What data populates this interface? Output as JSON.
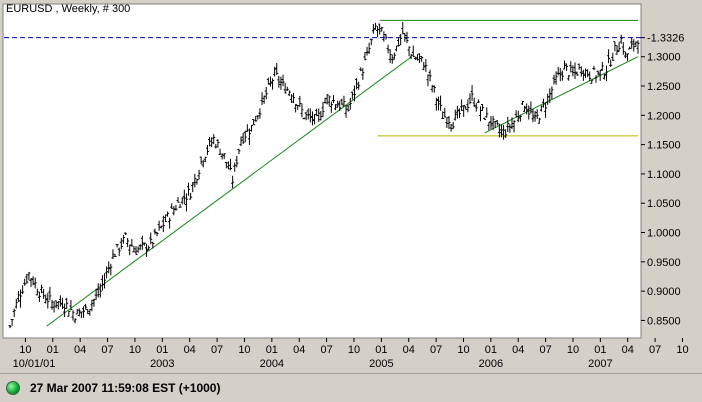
{
  "chart_data": {
    "type": "ohlc",
    "title": "EURUSD , Weekly, # 300",
    "timeframe": "Weekly",
    "bars_count": 300,
    "ylim": [
      0.82,
      1.39
    ],
    "y_ticks": [
      "0.8500",
      "0.9000",
      "0.9500",
      "1.0000",
      "1.0500",
      "1.1000",
      "1.1500",
      "1.2000",
      "1.2500",
      "1.3000",
      "1.3326"
    ],
    "x_tick_labels": [
      "10",
      "01",
      "04",
      "07",
      "10",
      "01",
      "04",
      "07",
      "10",
      "01",
      "04",
      "07",
      "10",
      "01",
      "04",
      "07",
      "10",
      "01",
      "04",
      "07",
      "10",
      "01",
      "04",
      "07",
      "10",
      "01"
    ],
    "x_year_labels": [
      "10/01/01",
      "2003",
      "2004",
      "2005",
      "2006",
      "2007"
    ],
    "last_price": "1.3326",
    "trend_levels": [
      {
        "name": "long-term support",
        "start": [
          "2002-01",
          0.84
        ],
        "end": [
          "2005-05",
          1.3
        ]
      },
      {
        "name": "upper resistance",
        "value": 1.362
      },
      {
        "name": "lower support",
        "value": 1.165
      },
      {
        "name": "short-term support",
        "start": [
          "2006-01",
          1.17
        ],
        "end": [
          "2007-03",
          1.3
        ]
      }
    ],
    "price_path": [
      [
        0,
        0.84
      ],
      [
        4,
        0.89
      ],
      [
        9,
        0.93
      ],
      [
        14,
        0.9
      ],
      [
        20,
        0.88
      ],
      [
        26,
        0.88
      ],
      [
        31,
        0.86
      ],
      [
        37,
        0.87
      ],
      [
        43,
        0.9
      ],
      [
        49,
        0.96
      ],
      [
        55,
        0.99
      ],
      [
        60,
        0.97
      ],
      [
        67,
        0.98
      ],
      [
        74,
        1.02
      ],
      [
        80,
        1.05
      ],
      [
        86,
        1.07
      ],
      [
        92,
        1.13
      ],
      [
        97,
        1.16
      ],
      [
        102,
        1.13
      ],
      [
        106,
        1.09
      ],
      [
        110,
        1.16
      ],
      [
        115,
        1.18
      ],
      [
        120,
        1.22
      ],
      [
        126,
        1.27
      ],
      [
        130,
        1.25
      ],
      [
        134,
        1.24
      ],
      [
        140,
        1.2
      ],
      [
        146,
        1.19
      ],
      [
        151,
        1.23
      ],
      [
        156,
        1.22
      ],
      [
        161,
        1.21
      ],
      [
        165,
        1.25
      ],
      [
        170,
        1.3
      ],
      [
        174,
        1.35
      ],
      [
        177,
        1.34
      ],
      [
        182,
        1.3
      ],
      [
        187,
        1.34
      ],
      [
        192,
        1.3
      ],
      [
        197,
        1.29
      ],
      [
        202,
        1.24
      ],
      [
        206,
        1.2
      ],
      [
        211,
        1.19
      ],
      [
        216,
        1.21
      ],
      [
        220,
        1.23
      ],
      [
        226,
        1.2
      ],
      [
        231,
        1.18
      ],
      [
        235,
        1.17
      ],
      [
        240,
        1.19
      ],
      [
        245,
        1.22
      ],
      [
        250,
        1.19
      ],
      [
        255,
        1.22
      ],
      [
        260,
        1.26
      ],
      [
        264,
        1.28
      ],
      [
        268,
        1.27
      ],
      [
        272,
        1.28
      ],
      [
        276,
        1.27
      ],
      [
        280,
        1.27
      ],
      [
        284,
        1.28
      ],
      [
        288,
        1.31
      ],
      [
        291,
        1.33
      ],
      [
        293,
        1.3
      ],
      [
        295,
        1.31
      ],
      [
        297,
        1.32
      ],
      [
        299,
        1.3326
      ]
    ]
  },
  "status": {
    "datetime": "27 Mar 2007 11:59:08 EST (+1000)"
  },
  "colors": {
    "plot_bg": "#ffffff",
    "frame_bg": "#d4d0c8",
    "bars": "#000000",
    "trend_green": "#118811",
    "level_yellow": "#b8b800",
    "last_price_line": "#0000cc"
  }
}
